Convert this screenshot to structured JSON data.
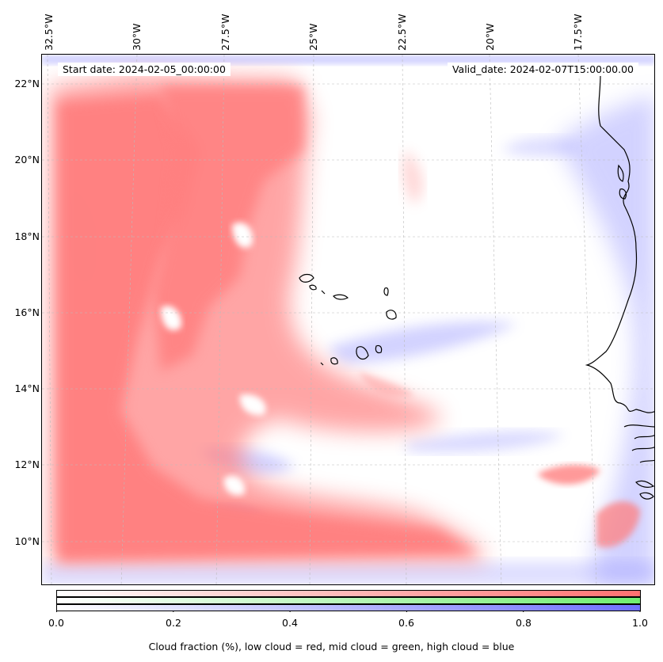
{
  "map": {
    "start_date": "Start date: 2024-02-05_00:00:00",
    "valid_date": "Valid_date: 2024-02-07T15:00:00.00",
    "lon_ticks": [
      "32.5°W",
      "30°W",
      "27.5°W",
      "25°W",
      "22.5°W",
      "20°W",
      "17.5°W"
    ],
    "lat_ticks": [
      "22°N",
      "20°N",
      "18°N",
      "16°N",
      "14°N",
      "12°N",
      "10°N"
    ],
    "colors": {
      "low": "#ff8080",
      "mid": "#80f080",
      "high": "#8080ff",
      "coast": "#000000"
    }
  },
  "colorbar": {
    "ticks": [
      "0.0",
      "0.2",
      "0.4",
      "0.6",
      "0.8",
      "1.0"
    ],
    "label": "Cloud fraction (%), low cloud = red, mid cloud = green, high cloud = blue"
  }
}
